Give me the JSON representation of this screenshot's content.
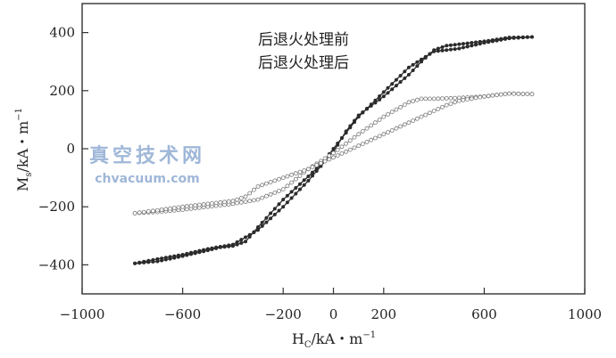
{
  "chart_data": {
    "type": "scatter",
    "xlabel_main": "H",
    "xlabel_sub": "C",
    "xlabel_unit": "/kA・m",
    "xlabel_sup": "−1",
    "ylabel_main": "M",
    "ylabel_sub": "s",
    "ylabel_unit": "/kA・m",
    "ylabel_sup": "−1",
    "xlim": [
      -1000,
      1000
    ],
    "ylim": [
      -500,
      500
    ],
    "xticks": [
      {
        "value": -1000,
        "label": "−1000"
      },
      {
        "value": -600,
        "label": "−600"
      },
      {
        "value": -200,
        "label": "−200"
      },
      {
        "value": 0,
        "label": "0"
      },
      {
        "value": 200,
        "label": "200"
      },
      {
        "value": 600,
        "label": "600"
      },
      {
        "value": 1000,
        "label": "1000"
      }
    ],
    "yticks": [
      {
        "value": 400,
        "label": "400"
      },
      {
        "value": 200,
        "label": "200"
      },
      {
        "value": 0,
        "label": "0"
      },
      {
        "value": -200,
        "label": "−200"
      },
      {
        "value": -400,
        "label": "−400"
      }
    ],
    "legend": [
      "后退火处理前",
      "后退火处理后"
    ],
    "watermark": {
      "cn": "真空技术网",
      "en": "chvacuum.com"
    },
    "series": [
      {
        "name": "后退火处理前",
        "marker": "filled",
        "color": "#2b2b2b",
        "branches": [
          {
            "x": [
              -790,
              -700,
              -600,
              -500,
              -450,
              -400,
              -350,
              -300,
              -200,
              -100,
              -50,
              0,
              50,
              100,
              200,
              300,
              400,
              500,
              600,
              700,
              790
            ],
            "y": [
              -395,
              -388,
              -370,
              -350,
              -340,
              -335,
              -320,
              -270,
              -175,
              -95,
              -55,
              0,
              55,
              110,
              195,
              280,
              335,
              345,
              365,
              380,
              385
            ]
          },
          {
            "x": [
              -790,
              -700,
              -600,
              -500,
              -400,
              -300,
              -200,
              -100,
              -50,
              0,
              50,
              100,
              200,
              300,
              350,
              400,
              450,
              500,
              600,
              700,
              790
            ],
            "y": [
              -395,
              -380,
              -365,
              -345,
              -330,
              -280,
              -200,
              -110,
              -60,
              -10,
              60,
              115,
              180,
              255,
              300,
              340,
              355,
              360,
              370,
              383,
              385
            ]
          }
        ]
      },
      {
        "name": "后退火处理后",
        "marker": "open",
        "color": "#7a7a7a",
        "branches": [
          {
            "x": [
              -790,
              -700,
              -600,
              -500,
              -450,
              -400,
              -300,
              -200,
              -100,
              0,
              100,
              200,
              300,
              350,
              400,
              500,
              600,
              700,
              790
            ],
            "y": [
              -222,
              -218,
              -210,
              -200,
              -195,
              -190,
              -175,
              -140,
              -70,
              -15,
              50,
              110,
              160,
              172,
              172,
              175,
              180,
              190,
              188
            ]
          },
          {
            "x": [
              -790,
              -700,
              -600,
              -500,
              -400,
              -350,
              -300,
              -200,
              -100,
              0,
              100,
              200,
              300,
              400,
              450,
              500,
              600,
              700,
              790
            ],
            "y": [
              -222,
              -212,
              -200,
              -190,
              -180,
              -165,
              -130,
              -100,
              -70,
              -30,
              10,
              50,
              90,
              130,
              150,
              165,
              180,
              190,
              188
            ]
          }
        ]
      }
    ]
  }
}
